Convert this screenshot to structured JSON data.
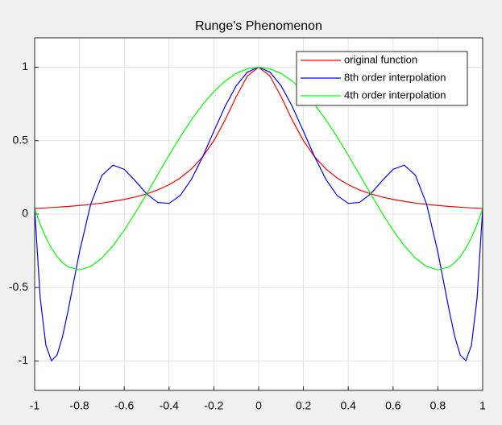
{
  "chart_data": {
    "type": "line",
    "title": "Runge's Phenomenon",
    "x": [
      -1,
      -0.975,
      -0.95,
      -0.925,
      -0.9,
      -0.875,
      -0.85,
      -0.8,
      -0.75,
      -0.7,
      -0.65,
      -0.6,
      -0.55,
      -0.5,
      -0.45,
      -0.4,
      -0.35,
      -0.3,
      -0.25,
      -0.2,
      -0.15,
      -0.1,
      -0.05,
      0,
      0.05,
      0.1,
      0.15,
      0.2,
      0.25,
      0.3,
      0.35,
      0.4,
      0.45,
      0.5,
      0.55,
      0.6,
      0.65,
      0.7,
      0.75,
      0.8,
      0.85,
      0.875,
      0.9,
      0.925,
      0.95,
      0.975,
      1
    ],
    "series": [
      {
        "name": "original function",
        "color": "#ff0000",
        "values": [
          0.038,
          0.04,
          0.042,
          0.045,
          0.047,
          0.05,
          0.052,
          0.059,
          0.066,
          0.075,
          0.087,
          0.1,
          0.117,
          0.138,
          0.165,
          0.2,
          0.246,
          0.308,
          0.39,
          0.5,
          0.64,
          0.8,
          0.941,
          1,
          0.941,
          0.8,
          0.64,
          0.5,
          0.39,
          0.308,
          0.246,
          0.2,
          0.165,
          0.138,
          0.117,
          0.1,
          0.087,
          0.075,
          0.066,
          0.059,
          0.052,
          0.05,
          0.047,
          0.045,
          0.042,
          0.04,
          0.038
        ]
      },
      {
        "name": "8th order interpolation",
        "color": "#0000ff",
        "values": [
          0.038,
          -0.574,
          -0.892,
          -0.998,
          -0.96,
          -0.831,
          -0.652,
          -0.259,
          0.066,
          0.264,
          0.333,
          0.305,
          0.225,
          0.138,
          0.079,
          0.073,
          0.127,
          0.237,
          0.39,
          0.564,
          0.733,
          0.874,
          0.967,
          1,
          0.967,
          0.874,
          0.733,
          0.564,
          0.39,
          0.237,
          0.127,
          0.073,
          0.079,
          0.138,
          0.225,
          0.305,
          0.333,
          0.264,
          0.066,
          -0.259,
          -0.652,
          -0.831,
          -0.96,
          -0.998,
          -0.892,
          -0.574,
          0.038
        ]
      },
      {
        "name": "4th order interpolation",
        "color": "#00ff00",
        "values": [
          0.038,
          -0.07,
          -0.16,
          -0.232,
          -0.289,
          -0.331,
          -0.36,
          -0.379,
          -0.357,
          -0.3,
          -0.215,
          -0.11,
          0.01,
          0.138,
          0.27,
          0.401,
          0.526,
          0.642,
          0.746,
          0.834,
          0.905,
          0.958,
          0.989,
          1,
          0.989,
          0.958,
          0.905,
          0.834,
          0.746,
          0.642,
          0.526,
          0.401,
          0.27,
          0.138,
          0.01,
          -0.11,
          -0.215,
          -0.3,
          -0.357,
          -0.379,
          -0.36,
          -0.331,
          -0.289,
          -0.232,
          -0.16,
          -0.07,
          0.038
        ]
      }
    ],
    "xlim": [
      -1,
      1
    ],
    "xticks": [
      -1,
      -0.8,
      -0.6,
      -0.4,
      -0.2,
      0,
      0.2,
      0.4,
      0.6,
      0.8,
      1
    ],
    "ylim": [
      -1.2,
      1.2
    ],
    "yticks": [
      -1,
      -0.5,
      0,
      0.5,
      1
    ],
    "grid": true,
    "legend": "northeast"
  }
}
